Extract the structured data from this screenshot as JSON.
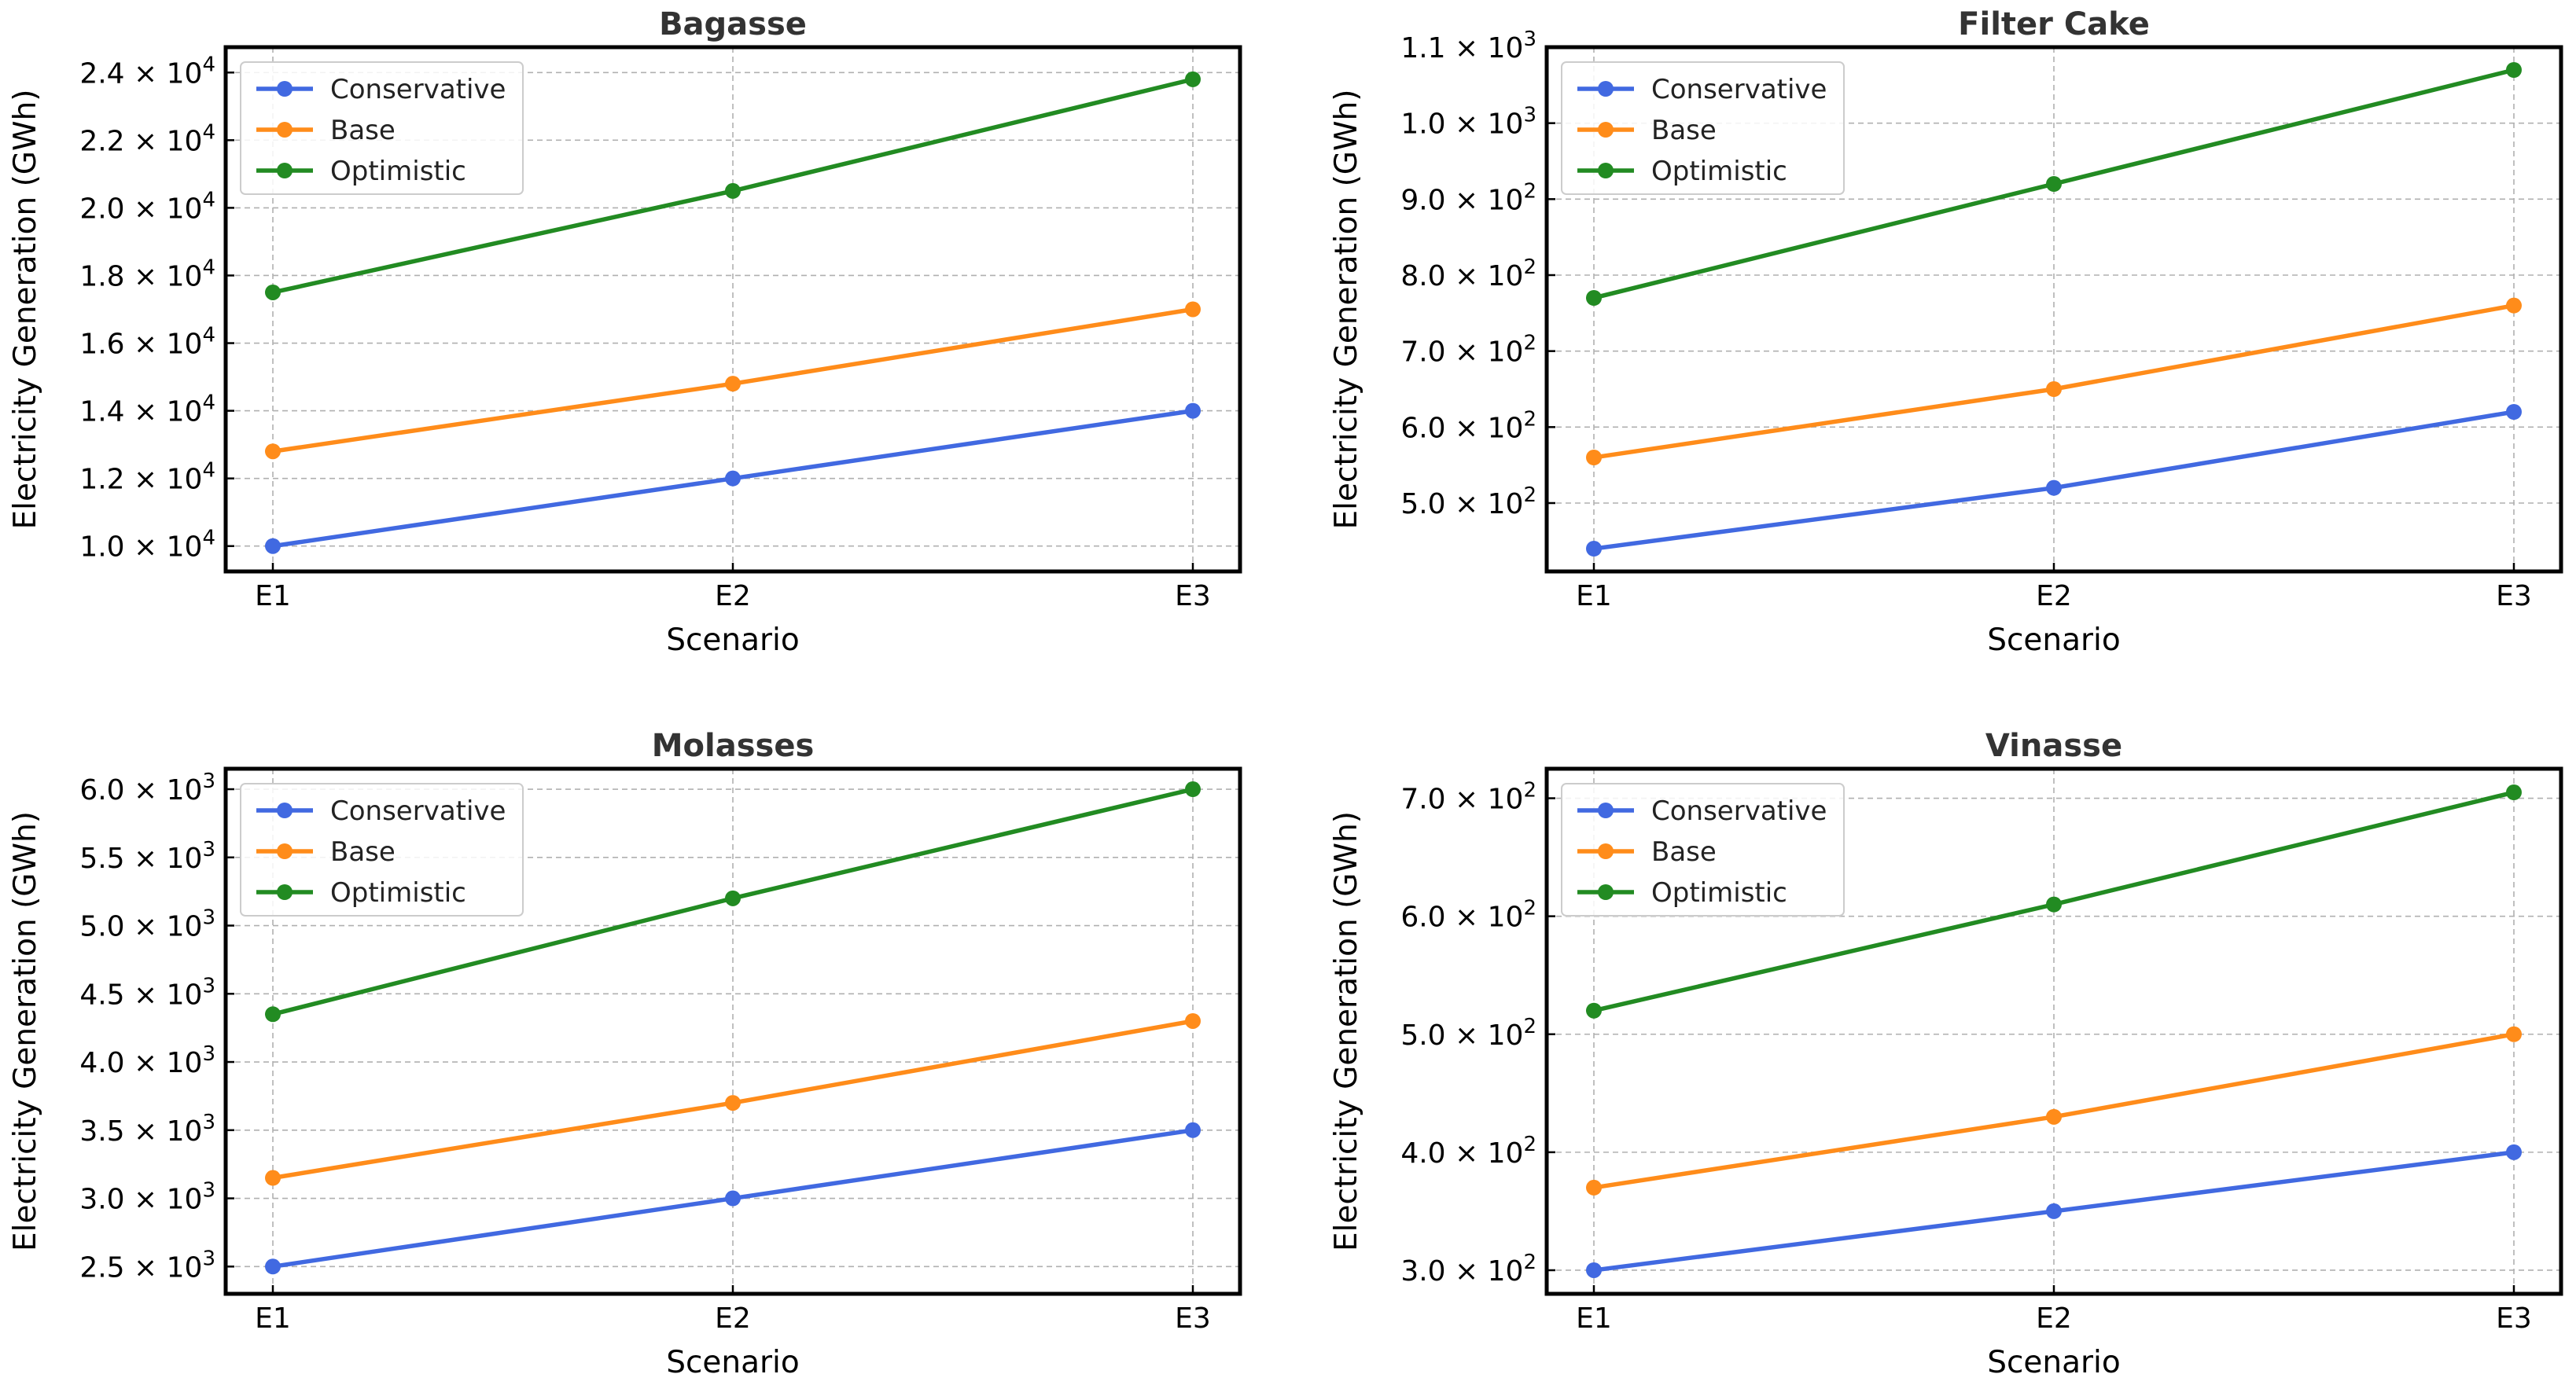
{
  "colors": {
    "Conservative": "#4169e1",
    "Base": "#ff8c1a",
    "Optimistic": "#228b22"
  },
  "chart_data": [
    {
      "type": "line",
      "title": "Bagasse",
      "xlabel": "Scenario",
      "ylabel": "Electricity Generation (GWh)",
      "categories": [
        "E1",
        "E2",
        "E3"
      ],
      "series": [
        {
          "name": "Conservative",
          "values": [
            10000,
            12000,
            14000
          ]
        },
        {
          "name": "Base",
          "values": [
            12800,
            14800,
            17000
          ]
        },
        {
          "name": "Optimistic",
          "values": [
            17500,
            20500,
            23800
          ]
        }
      ],
      "ylim": [
        9250,
        24750
      ],
      "yticks": [
        {
          "value": 10000,
          "mant": "1.0",
          "exp": "4"
        },
        {
          "value": 12000,
          "mant": "1.2",
          "exp": "4"
        },
        {
          "value": 14000,
          "mant": "1.4",
          "exp": "4"
        },
        {
          "value": 16000,
          "mant": "1.6",
          "exp": "4"
        },
        {
          "value": 18000,
          "mant": "1.8",
          "exp": "4"
        },
        {
          "value": 20000,
          "mant": "2.0",
          "exp": "4"
        },
        {
          "value": 22000,
          "mant": "2.2",
          "exp": "4"
        },
        {
          "value": 24000,
          "mant": "2.4",
          "exp": "4"
        }
      ],
      "legend": "top-left",
      "grid": true
    },
    {
      "type": "line",
      "title": "Filter Cake",
      "xlabel": "Scenario",
      "ylabel": "Electricity Generation (GWh)",
      "categories": [
        "E1",
        "E2",
        "E3"
      ],
      "series": [
        {
          "name": "Conservative",
          "values": [
            440,
            520,
            620
          ]
        },
        {
          "name": "Base",
          "values": [
            560,
            650,
            760
          ]
        },
        {
          "name": "Optimistic",
          "values": [
            770,
            920,
            1070
          ]
        }
      ],
      "ylim": [
        410,
        1100
      ],
      "yticks": [
        {
          "value": 500,
          "mant": "5.0",
          "exp": "2"
        },
        {
          "value": 600,
          "mant": "6.0",
          "exp": "2"
        },
        {
          "value": 700,
          "mant": "7.0",
          "exp": "2"
        },
        {
          "value": 800,
          "mant": "8.0",
          "exp": "2"
        },
        {
          "value": 900,
          "mant": "9.0",
          "exp": "2"
        },
        {
          "value": 1000,
          "mant": "1.0",
          "exp": "3"
        },
        {
          "value": 1100,
          "mant": "1.1",
          "exp": "3"
        }
      ],
      "legend": "top-left",
      "grid": true
    },
    {
      "type": "line",
      "title": "Molasses",
      "xlabel": "Scenario",
      "ylabel": "Electricity Generation (GWh)",
      "categories": [
        "E1",
        "E2",
        "E3"
      ],
      "series": [
        {
          "name": "Conservative",
          "values": [
            2500,
            3000,
            3500
          ]
        },
        {
          "name": "Base",
          "values": [
            3150,
            3700,
            4300
          ]
        },
        {
          "name": "Optimistic",
          "values": [
            4350,
            5200,
            6000
          ]
        }
      ],
      "ylim": [
        2300,
        6150
      ],
      "yticks": [
        {
          "value": 2500,
          "mant": "2.5",
          "exp": "3"
        },
        {
          "value": 3000,
          "mant": "3.0",
          "exp": "3"
        },
        {
          "value": 3500,
          "mant": "3.5",
          "exp": "3"
        },
        {
          "value": 4000,
          "mant": "4.0",
          "exp": "3"
        },
        {
          "value": 4500,
          "mant": "4.5",
          "exp": "3"
        },
        {
          "value": 5000,
          "mant": "5.0",
          "exp": "3"
        },
        {
          "value": 5500,
          "mant": "5.5",
          "exp": "3"
        },
        {
          "value": 6000,
          "mant": "6.0",
          "exp": "3"
        }
      ],
      "legend": "top-left",
      "grid": true
    },
    {
      "type": "line",
      "title": "Vinasse",
      "xlabel": "Scenario",
      "ylabel": "Electricity Generation (GWh)",
      "categories": [
        "E1",
        "E2",
        "E3"
      ],
      "series": [
        {
          "name": "Conservative",
          "values": [
            300,
            350,
            400
          ]
        },
        {
          "name": "Base",
          "values": [
            370,
            430,
            500
          ]
        },
        {
          "name": "Optimistic",
          "values": [
            520,
            610,
            705
          ]
        }
      ],
      "ylim": [
        280,
        725
      ],
      "yticks": [
        {
          "value": 300,
          "mant": "3.0",
          "exp": "2"
        },
        {
          "value": 400,
          "mant": "4.0",
          "exp": "2"
        },
        {
          "value": 500,
          "mant": "5.0",
          "exp": "2"
        },
        {
          "value": 600,
          "mant": "6.0",
          "exp": "2"
        },
        {
          "value": 700,
          "mant": "7.0",
          "exp": "2"
        }
      ],
      "legend": "top-left",
      "grid": true
    }
  ]
}
